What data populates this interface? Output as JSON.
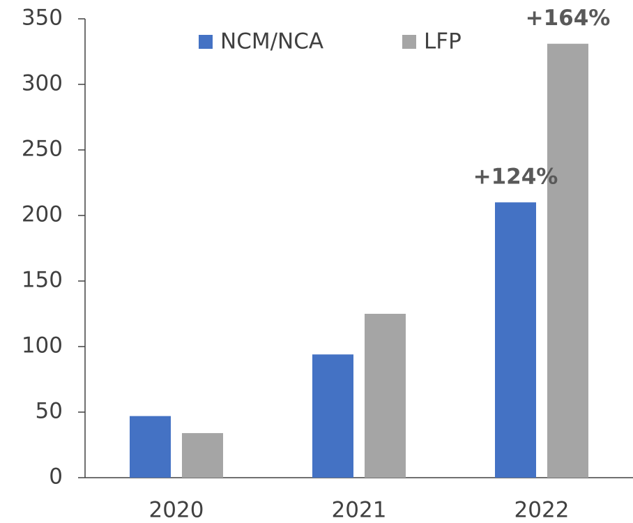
{
  "chart_data": {
    "type": "bar",
    "categories": [
      "2020",
      "2021",
      "2022"
    ],
    "series": [
      {
        "name": "NCM/NCA",
        "color": "#4472c4",
        "values": [
          47,
          94,
          210
        ]
      },
      {
        "name": "LFP",
        "color": "#a5a5a5",
        "values": [
          34,
          125,
          331
        ]
      }
    ],
    "annotations": [
      "+124%",
      "+164%"
    ],
    "ylim": [
      0,
      350
    ],
    "yticks": [
      0,
      50,
      100,
      150,
      200,
      250,
      300,
      350
    ],
    "grid": false,
    "legend": "top"
  }
}
